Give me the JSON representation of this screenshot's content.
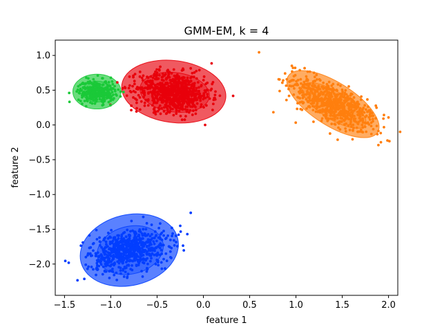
{
  "chart_data": {
    "type": "scatter",
    "title": "GMM-EM, k = 4",
    "xlabel": "feature 1",
    "ylabel": "feature 2",
    "xlim": [
      -1.6,
      2.1
    ],
    "ylim": [
      -2.45,
      1.22
    ],
    "x_ticks": [
      -1.5,
      -1.0,
      -0.5,
      0.0,
      0.5,
      1.0,
      1.5,
      2.0
    ],
    "y_ticks": [
      1.0,
      0.5,
      0.0,
      -0.5,
      -1.0,
      -1.5,
      -2.0
    ],
    "x_tick_labels": [
      "−1.5",
      "−1.0",
      "−0.5",
      "0.0",
      "0.5",
      "1.0",
      "1.5",
      "2.0"
    ],
    "y_tick_labels": [
      "1.0",
      "0.5",
      "0.0",
      "−0.5",
      "−1.0",
      "−1.5",
      "−2.0"
    ],
    "grid": false,
    "legend": "none",
    "clusters": [
      {
        "color": "#ff7f0e",
        "point_color": "#ff7f0e",
        "mean": [
          1.4,
          0.3
        ],
        "n_points": 700,
        "spread_major": 0.27,
        "spread_minor": 0.12,
        "angle_deg": -40,
        "ellipses": [
          {
            "center": [
              1.4,
              0.3
            ],
            "major_half": 0.63,
            "minor_half": 0.27,
            "angle_deg": -40
          },
          {
            "center": [
              1.41,
              0.28
            ],
            "major_half": 0.44,
            "minor_half": 0.17,
            "angle_deg": -40
          }
        ]
      },
      {
        "color": "#e8000b",
        "point_color": "#e8000b",
        "mean": [
          -0.32,
          0.47
        ],
        "n_points": 800,
        "spread_major": 0.2,
        "spread_minor": 0.14,
        "angle_deg": -10,
        "ellipses": [
          {
            "center": [
              -0.32,
              0.48
            ],
            "major_half": 0.57,
            "minor_half": 0.44,
            "angle_deg": -10
          },
          {
            "center": [
              -0.31,
              0.47
            ],
            "major_half": 0.38,
            "minor_half": 0.28,
            "angle_deg": -10
          }
        ]
      },
      {
        "color": "#1ac938",
        "point_color": "#1ac938",
        "mean": [
          -1.15,
          0.48
        ],
        "n_points": 300,
        "spread_major": 0.1,
        "spread_minor": 0.08,
        "angle_deg": 0,
        "ellipses": [
          {
            "center": [
              -1.15,
              0.48
            ],
            "major_half": 0.26,
            "minor_half": 0.25,
            "angle_deg": 0
          },
          {
            "center": [
              -1.15,
              0.48
            ],
            "major_half": 0.16,
            "minor_half": 0.15,
            "angle_deg": 0
          }
        ]
      },
      {
        "color": "#023eff",
        "point_color": "#023eff",
        "mean": [
          -0.8,
          -1.8
        ],
        "n_points": 700,
        "spread_major": 0.22,
        "spread_minor": 0.14,
        "angle_deg": 18,
        "ellipses": [
          {
            "center": [
              -0.8,
              -1.8
            ],
            "major_half": 0.55,
            "minor_half": 0.49,
            "angle_deg": 18
          },
          {
            "center": [
              -0.79,
              -1.8
            ],
            "major_half": 0.37,
            "minor_half": 0.33,
            "angle_deg": 18
          }
        ]
      }
    ]
  }
}
